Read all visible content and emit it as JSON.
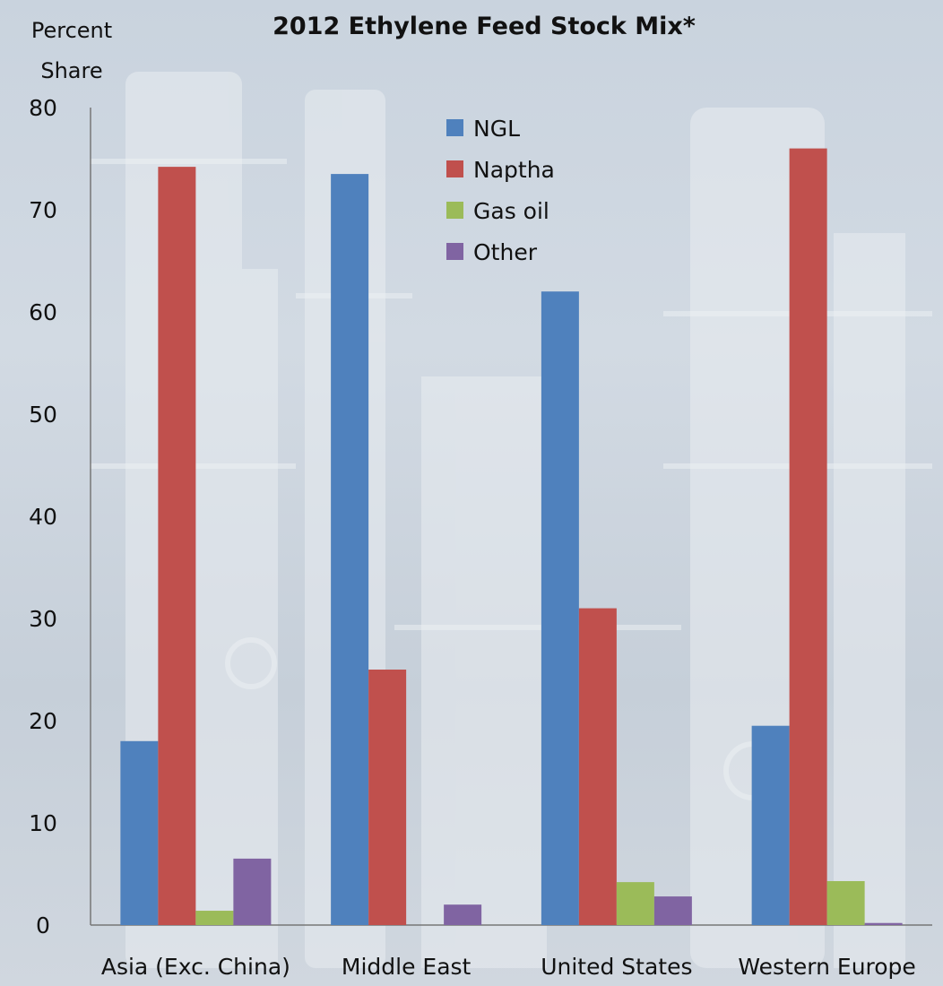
{
  "chart_data": {
    "type": "bar",
    "title": "2012 Ethylene Feed Stock Mix*",
    "ylabel_line1": "Percent",
    "ylabel_line2": "Share",
    "xlabel": "",
    "ylim": [
      0,
      80
    ],
    "yticks": [
      0,
      10,
      20,
      30,
      40,
      50,
      60,
      70,
      80
    ],
    "grid": false,
    "legend_position": "top-center",
    "categories": [
      "Asia (Exc. China)",
      "Middle East",
      "United States",
      "Western Europe"
    ],
    "series": [
      {
        "name": "NGL",
        "color": "#4f81bd",
        "values": [
          18.0,
          73.5,
          62.0,
          19.5
        ]
      },
      {
        "name": "Naptha",
        "color": "#c0504d",
        "values": [
          74.2,
          25.0,
          31.0,
          76.0
        ]
      },
      {
        "name": "Gas oil",
        "color": "#9bbb59",
        "values": [
          1.4,
          0.0,
          4.2,
          4.3
        ]
      },
      {
        "name": "Other",
        "color": "#8064a2",
        "values": [
          6.5,
          2.0,
          2.8,
          0.2
        ]
      }
    ]
  }
}
